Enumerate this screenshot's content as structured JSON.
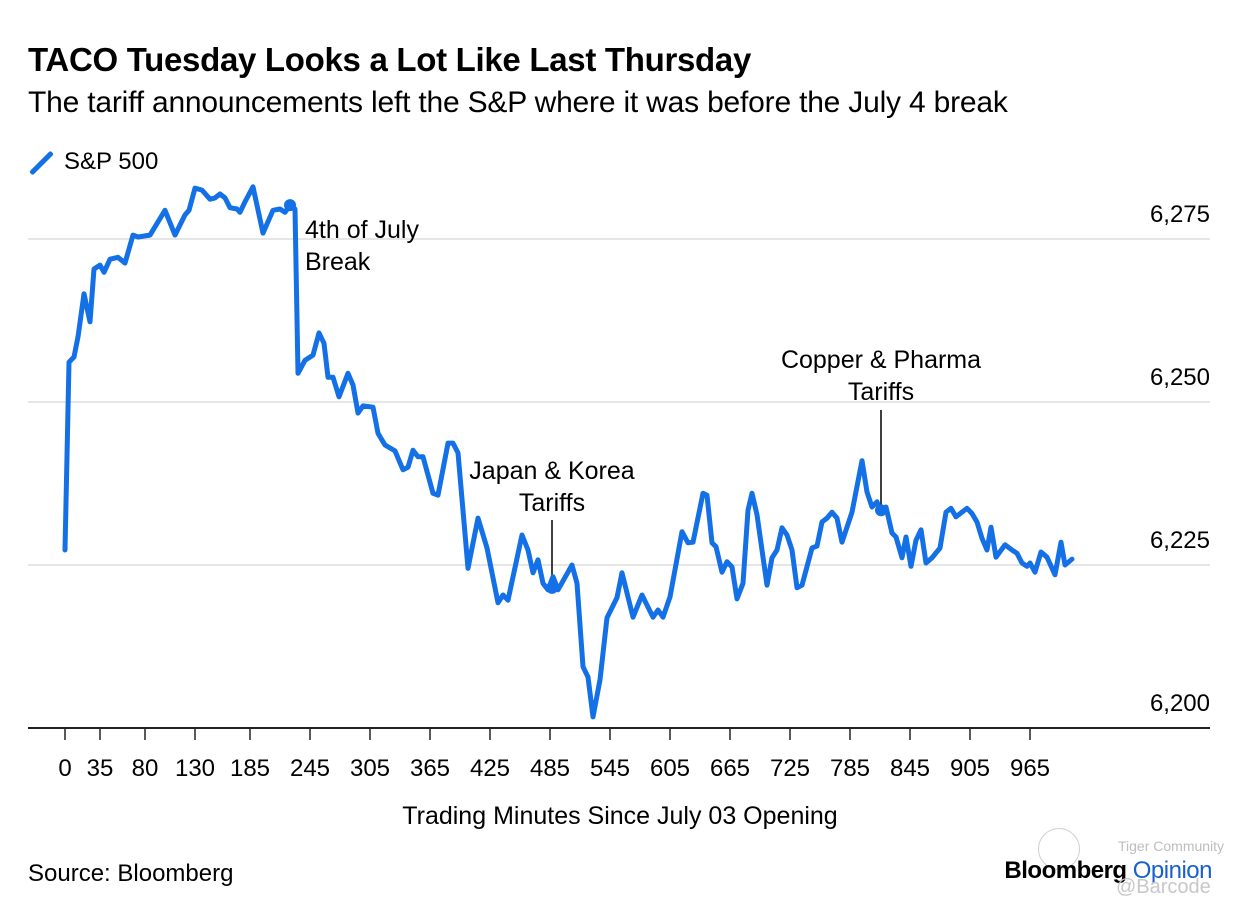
{
  "header": {
    "title": "TACO Tuesday Looks a Lot Like Last Thursday",
    "subtitle": "The tariff announcements left the S&P where it was before the July 4 break"
  },
  "legend": {
    "label": "S&P 500",
    "color": "#1470e6"
  },
  "footer": {
    "source": "Source: Bloomberg",
    "brand_main": "Bloomberg",
    "brand_accent": "Opinion",
    "watermark_top": "Tiger Community",
    "watermark_bottom": "@Barcode"
  },
  "chart_data": {
    "type": "line",
    "title": "TACO Tuesday Looks a Lot Like Last Thursday",
    "subtitle": "The tariff announcements left the S&P where it was before the July 4 break",
    "xlabel": "Trading Minutes Since July 03 Opening",
    "ylabel": "",
    "x_ticks": [
      0,
      35,
      80,
      130,
      185,
      245,
      305,
      365,
      425,
      485,
      545,
      605,
      665,
      725,
      785,
      845,
      905,
      965
    ],
    "y_ticks": [
      6200,
      6225,
      6250,
      6275
    ],
    "y_tick_labels": [
      "6,200",
      "6,225",
      "6,250",
      "6,275"
    ],
    "xlim": [
      0,
      1145
    ],
    "ylim": [
      6200,
      6280
    ],
    "grid": "horizontal",
    "y_axis_side": "right",
    "legend_position": "top-left",
    "series": [
      {
        "name": "S&P 500",
        "color": "#1470e6",
        "points": [
          [
            0,
            6227.3
          ],
          [
            4,
            6256.1
          ],
          [
            9,
            6256.9
          ],
          [
            13,
            6260.0
          ],
          [
            19,
            6266.6
          ],
          [
            25,
            6262.3
          ],
          [
            29,
            6270.4
          ],
          [
            35,
            6271.0
          ],
          [
            39,
            6269.9
          ],
          [
            45,
            6271.9
          ],
          [
            53,
            6272.2
          ],
          [
            60,
            6271.3
          ],
          [
            68,
            6275.6
          ],
          [
            73,
            6275.3
          ],
          [
            85,
            6275.6
          ],
          [
            100,
            6279.4
          ],
          [
            110,
            6275.6
          ],
          [
            120,
            6278.7
          ],
          [
            124,
            6279.4
          ],
          [
            130,
            6282.8
          ],
          [
            137,
            6282.5
          ],
          [
            145,
            6281.1
          ],
          [
            150,
            6281.3
          ],
          [
            155,
            6281.9
          ],
          [
            160,
            6281.3
          ],
          [
            165,
            6279.8
          ],
          [
            172,
            6279.6
          ],
          [
            175,
            6279.1
          ],
          [
            180,
            6280.7
          ],
          [
            188,
            6283.0
          ],
          [
            198,
            6275.9
          ],
          [
            208,
            6279.4
          ],
          [
            215,
            6279.6
          ],
          [
            220,
            6279.1
          ],
          [
            225,
            6280.2
          ],
          [
            230,
            6279.6
          ],
          [
            233,
            6254.4
          ],
          [
            240,
            6256.4
          ],
          [
            248,
            6257.2
          ],
          [
            254,
            6260.6
          ],
          [
            259,
            6259.0
          ],
          [
            263,
            6253.8
          ],
          [
            268,
            6253.8
          ],
          [
            274,
            6250.8
          ],
          [
            283,
            6254.4
          ],
          [
            288,
            6252.6
          ],
          [
            293,
            6248.3
          ],
          [
            298,
            6249.4
          ],
          [
            308,
            6249.2
          ],
          [
            313,
            6245.2
          ],
          [
            320,
            6243.4
          ],
          [
            330,
            6242.5
          ],
          [
            338,
            6239.6
          ],
          [
            343,
            6240.0
          ],
          [
            348,
            6242.6
          ],
          [
            353,
            6241.6
          ],
          [
            358,
            6241.6
          ],
          [
            368,
            6236.0
          ],
          [
            373,
            6235.7
          ],
          [
            383,
            6243.7
          ],
          [
            388,
            6243.7
          ],
          [
            393,
            6242.2
          ],
          [
            403,
            6224.5
          ],
          [
            413,
            6232.2
          ],
          [
            422,
            6227.6
          ],
          [
            433,
            6219.2
          ],
          [
            438,
            6220.4
          ],
          [
            443,
            6219.6
          ],
          [
            457,
            6229.6
          ],
          [
            463,
            6227.3
          ],
          [
            468,
            6223.8
          ],
          [
            473,
            6225.8
          ],
          [
            478,
            6222.2
          ],
          [
            483,
            6221.2
          ],
          [
            488,
            6223.2
          ],
          [
            493,
            6221.2
          ],
          [
            507,
            6225.0
          ],
          [
            512,
            6222.2
          ],
          [
            518,
            6209.4
          ],
          [
            523,
            6207.8
          ],
          [
            528,
            6201.7
          ],
          [
            535,
            6207.4
          ],
          [
            542,
            6216.9
          ],
          [
            552,
            6220.0
          ],
          [
            557,
            6223.8
          ],
          [
            568,
            6217.0
          ],
          [
            577,
            6220.4
          ],
          [
            588,
            6217.0
          ],
          [
            593,
            6218.1
          ],
          [
            598,
            6217.0
          ],
          [
            605,
            6220.1
          ],
          [
            617,
            6230.1
          ],
          [
            623,
            6228.4
          ],
          [
            628,
            6228.5
          ],
          [
            638,
            6236.0
          ],
          [
            642,
            6235.7
          ],
          [
            647,
            6228.4
          ],
          [
            651,
            6227.8
          ],
          [
            657,
            6223.9
          ],
          [
            662,
            6225.5
          ],
          [
            667,
            6224.7
          ],
          [
            672,
            6219.8
          ],
          [
            678,
            6222.2
          ],
          [
            683,
            6233.4
          ],
          [
            687,
            6236.0
          ],
          [
            692,
            6232.7
          ],
          [
            702,
            6221.9
          ],
          [
            707,
            6226.1
          ],
          [
            712,
            6227.3
          ],
          [
            717,
            6230.7
          ],
          [
            722,
            6229.6
          ],
          [
            727,
            6227.3
          ],
          [
            732,
            6221.5
          ],
          [
            737,
            6221.9
          ],
          [
            747,
            6227.6
          ],
          [
            752,
            6227.9
          ],
          [
            757,
            6231.6
          ],
          [
            762,
            6232.2
          ],
          [
            767,
            6233.1
          ],
          [
            772,
            6232.2
          ],
          [
            777,
            6228.5
          ],
          [
            787,
            6233.1
          ],
          [
            797,
            6241.0
          ],
          [
            802,
            6236.2
          ],
          [
            807,
            6233.9
          ],
          [
            812,
            6234.7
          ],
          [
            815,
            6233.4
          ],
          [
            821,
            6233.9
          ],
          [
            827,
            6229.9
          ],
          [
            831,
            6229.3
          ],
          [
            837,
            6226.1
          ],
          [
            841,
            6229.3
          ],
          [
            846,
            6224.8
          ],
          [
            851,
            6228.8
          ],
          [
            856,
            6230.4
          ],
          [
            861,
            6225.3
          ],
          [
            867,
            6226.1
          ],
          [
            875,
            6227.6
          ],
          [
            881,
            6233.1
          ],
          [
            886,
            6233.7
          ],
          [
            891,
            6232.4
          ],
          [
            902,
            6233.7
          ],
          [
            907,
            6232.9
          ],
          [
            912,
            6231.6
          ],
          [
            917,
            6229.1
          ],
          [
            922,
            6227.3
          ],
          [
            926,
            6230.8
          ],
          [
            931,
            6226.2
          ],
          [
            940,
            6228.1
          ],
          [
            947,
            6227.3
          ],
          [
            952,
            6226.8
          ],
          [
            957,
            6225.3
          ],
          [
            962,
            6224.8
          ],
          [
            965,
            6225.3
          ],
          [
            970,
            6223.9
          ],
          [
            976,
            6227.0
          ],
          [
            982,
            6226.2
          ],
          [
            990,
            6223.5
          ],
          [
            996,
            6228.5
          ],
          [
            1000,
            6225.0
          ],
          [
            1007,
            6225.9
          ]
        ]
      }
    ],
    "annotations": [
      {
        "text_lines": [
          "4th of July",
          "Break"
        ],
        "x": 225,
        "y": 6280.2,
        "align": "left"
      },
      {
        "text_lines": [
          "Japan & Korea",
          "Tariffs"
        ],
        "x": 487,
        "y": 6221.5,
        "align": "center"
      },
      {
        "text_lines": [
          "Copper & Pharma",
          "Tariffs"
        ],
        "x": 816,
        "y": 6233.4,
        "align": "center"
      }
    ]
  }
}
